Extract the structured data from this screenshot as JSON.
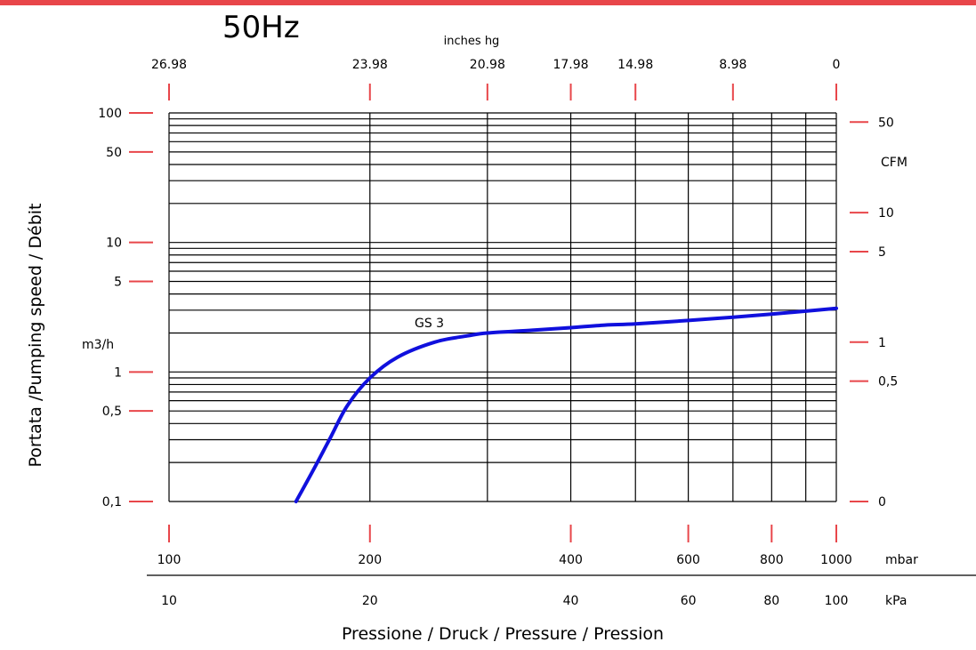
{
  "header": {
    "title": "50Hz",
    "accent_color": "#e8464a"
  },
  "chart_data": {
    "type": "line",
    "title": "50Hz",
    "x_scale": "log",
    "y_scale": "log",
    "xlim": [
      100,
      1000
    ],
    "ylim": [
      0.1,
      100
    ],
    "xlabel": "Pressione / Druck / Pressure / Pression",
    "ylabel": "Portata /Pumping speed / Débit",
    "bottom_axis": {
      "unit": "mbar",
      "ticks": [
        {
          "value": 100,
          "label": "100"
        },
        {
          "value": 200,
          "label": "200"
        },
        {
          "value": 400,
          "label": "400"
        },
        {
          "value": 600,
          "label": "600"
        },
        {
          "value": 800,
          "label": "800"
        },
        {
          "value": 1000,
          "label": "1000"
        }
      ]
    },
    "bottom_axis_2": {
      "unit": "kPa",
      "labels": [
        "10",
        "20",
        "40",
        "60",
        "80",
        "100"
      ]
    },
    "top_axis": {
      "title": "inches hg",
      "ticks": [
        {
          "value": 100,
          "label": "26.98"
        },
        {
          "value": 200,
          "label": "23.98"
        },
        {
          "value": 300,
          "label": "20.98"
        },
        {
          "value": 400,
          "label": "17.98"
        },
        {
          "value": 500,
          "label": "14.98"
        },
        {
          "value": 700,
          "label": "8.98"
        },
        {
          "value": 1000,
          "label": "0"
        }
      ]
    },
    "left_axis": {
      "unit": "m3/h",
      "ticks": [
        {
          "value": 100,
          "label": "100"
        },
        {
          "value": 50,
          "label": "50"
        },
        {
          "value": 10,
          "label": "10"
        },
        {
          "value": 5,
          "label": "5"
        },
        {
          "value": 1,
          "label": "1"
        },
        {
          "value": 0.5,
          "label": "0,5"
        },
        {
          "value": 0.1,
          "label": "0,1"
        }
      ]
    },
    "right_axis": {
      "unit": "CFM",
      "ticks": [
        {
          "value": 85,
          "label": "50"
        },
        {
          "value": 17,
          "label": "10"
        },
        {
          "value": 8.5,
          "label": "5"
        },
        {
          "value": 1.7,
          "label": "1"
        },
        {
          "value": 0.85,
          "label": "0,5"
        },
        {
          "value": 0.1,
          "label": "0"
        }
      ]
    },
    "grid": true,
    "vertical_gridlines": [
      100,
      200,
      300,
      400,
      500,
      600,
      700,
      800,
      900,
      1000
    ],
    "horizontal_gridlines": [
      0.1,
      0.2,
      0.3,
      0.4,
      0.5,
      0.6,
      0.7,
      0.8,
      0.9,
      1,
      2,
      3,
      4,
      5,
      6,
      7,
      8,
      9,
      10,
      20,
      30,
      40,
      50,
      60,
      70,
      80,
      90,
      100
    ],
    "series": [
      {
        "name": "GS 3",
        "color": "#1010dd",
        "x": [
          155,
          165,
          175,
          185,
          200,
          220,
          250,
          280,
          300,
          350,
          400,
          450,
          500,
          600,
          700,
          800,
          900,
          1000
        ],
        "y": [
          0.1,
          0.18,
          0.32,
          0.55,
          0.9,
          1.3,
          1.7,
          1.9,
          2.0,
          2.1,
          2.2,
          2.3,
          2.35,
          2.5,
          2.65,
          2.8,
          2.95,
          3.1
        ]
      }
    ]
  }
}
